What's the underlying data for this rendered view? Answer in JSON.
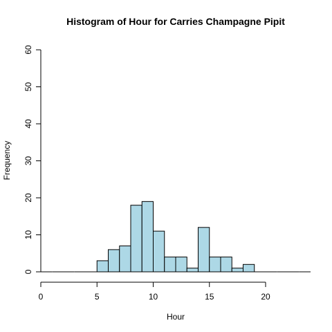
{
  "chart_data": {
    "type": "bar",
    "title": "Histogram of Hour for Carries Champagne Pipit",
    "xlabel": "Hour",
    "ylabel": "Frequency",
    "bar_color": "#ADD8E6",
    "border_color": "#000000",
    "xlim": [
      0,
      24
    ],
    "ylim": [
      0,
      60
    ],
    "x_ticks": [
      0,
      5,
      10,
      15,
      20
    ],
    "y_ticks": [
      0,
      10,
      20,
      30,
      40,
      50,
      60
    ],
    "bins": [
      {
        "x0": 0,
        "x1": 1,
        "count": 0
      },
      {
        "x0": 1,
        "x1": 2,
        "count": 0
      },
      {
        "x0": 2,
        "x1": 3,
        "count": 0
      },
      {
        "x0": 3,
        "x1": 4,
        "count": 0
      },
      {
        "x0": 4,
        "x1": 5,
        "count": 0
      },
      {
        "x0": 5,
        "x1": 6,
        "count": 3
      },
      {
        "x0": 6,
        "x1": 7,
        "count": 6
      },
      {
        "x0": 7,
        "x1": 8,
        "count": 7
      },
      {
        "x0": 8,
        "x1": 9,
        "count": 18
      },
      {
        "x0": 9,
        "x1": 10,
        "count": 19
      },
      {
        "x0": 10,
        "x1": 11,
        "count": 11
      },
      {
        "x0": 11,
        "x1": 12,
        "count": 4
      },
      {
        "x0": 12,
        "x1": 13,
        "count": 4
      },
      {
        "x0": 13,
        "x1": 14,
        "count": 1
      },
      {
        "x0": 14,
        "x1": 15,
        "count": 12
      },
      {
        "x0": 15,
        "x1": 16,
        "count": 4
      },
      {
        "x0": 16,
        "x1": 17,
        "count": 4
      },
      {
        "x0": 17,
        "x1": 18,
        "count": 1
      },
      {
        "x0": 18,
        "x1": 19,
        "count": 2
      },
      {
        "x0": 19,
        "x1": 20,
        "count": 0
      },
      {
        "x0": 20,
        "x1": 21,
        "count": 0
      },
      {
        "x0": 21,
        "x1": 22,
        "count": 0
      },
      {
        "x0": 22,
        "x1": 23,
        "count": 0
      },
      {
        "x0": 23,
        "x1": 24,
        "count": 0
      }
    ]
  }
}
